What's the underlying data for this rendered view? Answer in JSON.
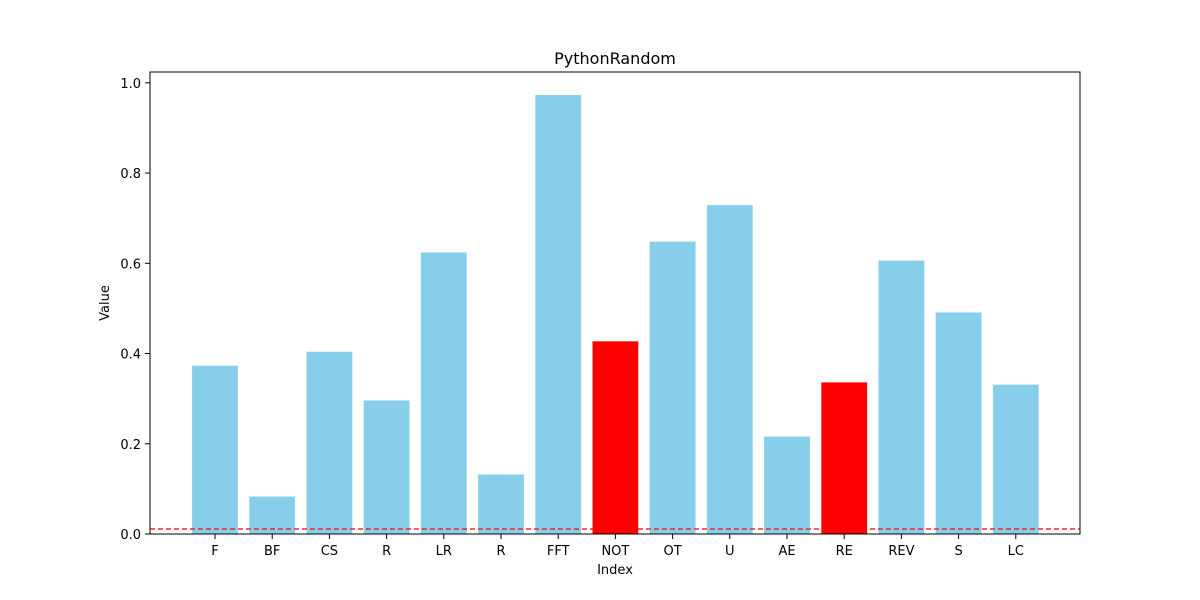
{
  "chart_data": {
    "type": "bar",
    "title": "PythonRandom",
    "xlabel": "Index",
    "ylabel": "Value",
    "categories": [
      "F",
      "BF",
      "CS",
      "R",
      "LR",
      "R",
      "FFT",
      "NOT",
      "OT",
      "U",
      "AE",
      "RE",
      "REV",
      "S",
      "LC"
    ],
    "values": [
      0.373,
      0.083,
      0.404,
      0.296,
      0.624,
      0.132,
      0.973,
      0.427,
      0.648,
      0.729,
      0.216,
      0.336,
      0.606,
      0.491,
      0.331
    ],
    "bar_colors": [
      "#87ceeb",
      "#87ceeb",
      "#87ceeb",
      "#87ceeb",
      "#87ceeb",
      "#87ceeb",
      "#87ceeb",
      "#ff0000",
      "#87ceeb",
      "#87ceeb",
      "#87ceeb",
      "#ff0000",
      "#87ceeb",
      "#87ceeb",
      "#87ceeb"
    ],
    "ylim": [
      0,
      1.024
    ],
    "yticks": [
      0.0,
      0.2,
      0.4,
      0.6,
      0.8,
      1.0
    ],
    "ytick_labels": [
      "0.0",
      "0.2",
      "0.4",
      "0.6",
      "0.8",
      "1.0"
    ],
    "reference_line": {
      "y": 0.011,
      "color": "#ff0000",
      "style": "dashed"
    },
    "grid": false,
    "legend": "none"
  }
}
